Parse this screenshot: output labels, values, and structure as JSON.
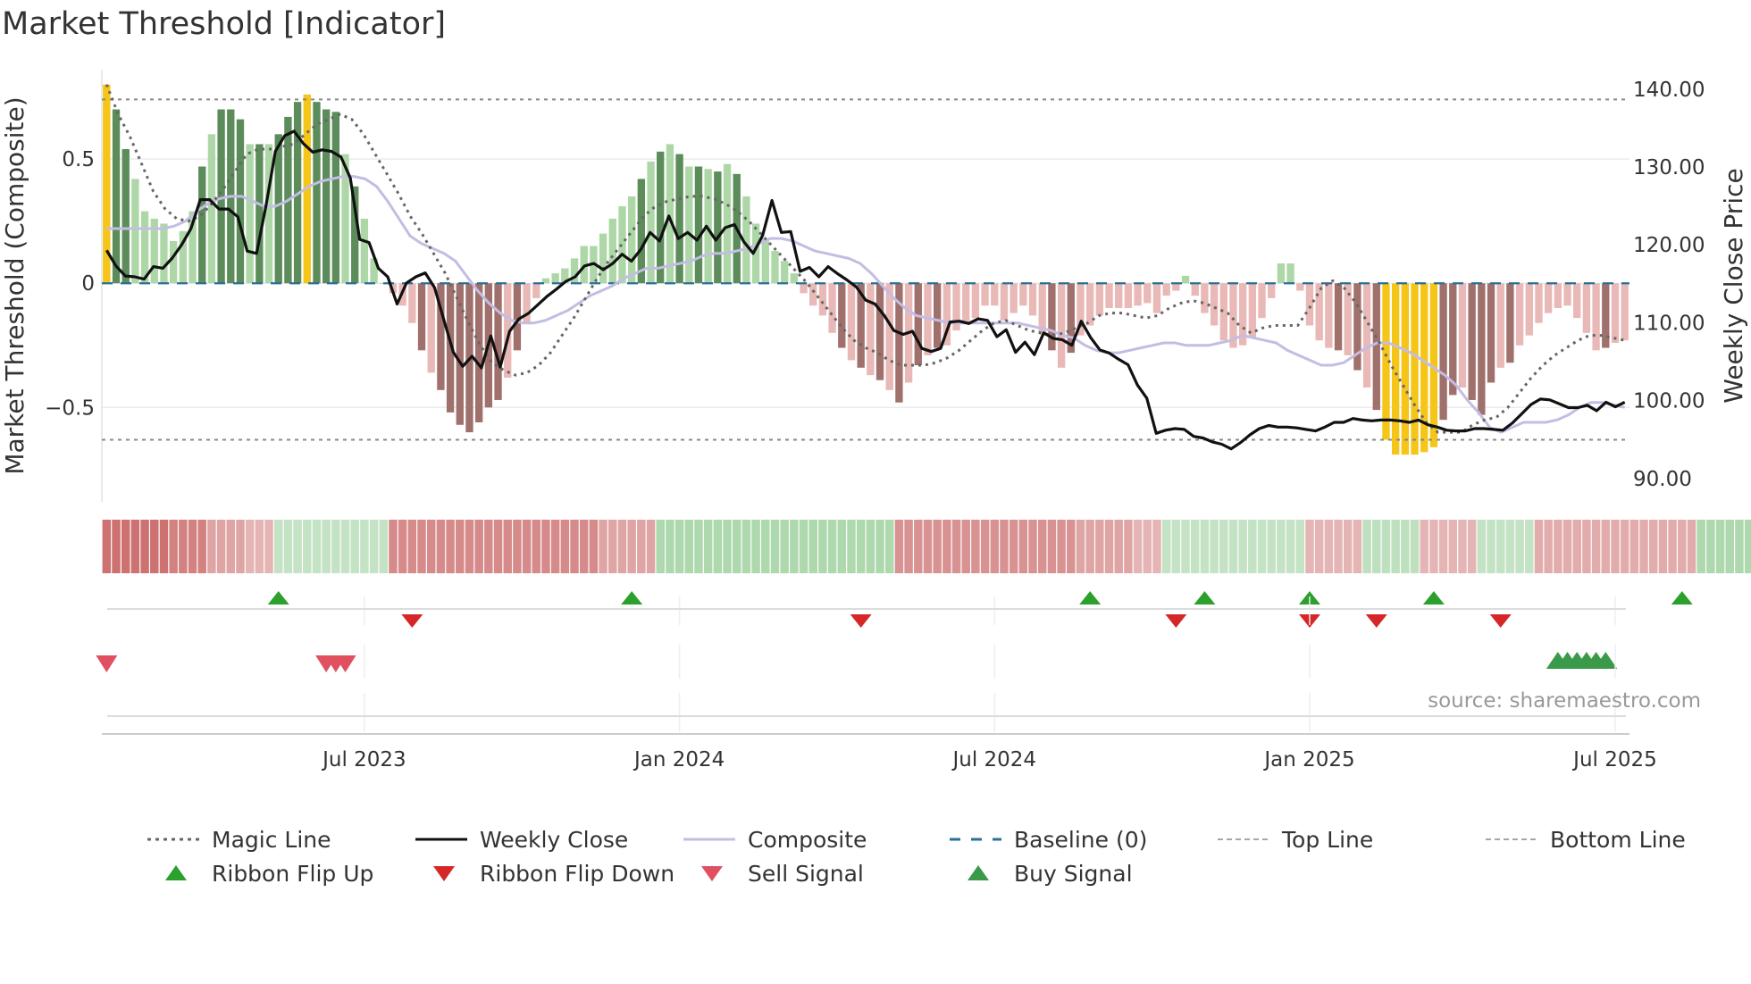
{
  "chart_data": {
    "type": "bar+line",
    "title": "Market Threshold [Indicator]",
    "ylabel_left": "Market Threshold (Composite)",
    "ylabel_right": "Weekly Close Price",
    "ylim_left": [
      -0.88,
      0.86
    ],
    "ylim_right": [
      87,
      142.5
    ],
    "yticks_left": [
      {
        "value": 0.5,
        "label": "0.5"
      },
      {
        "value": 0,
        "label": "0"
      },
      {
        "value": -0.5,
        "label": "−0.5"
      }
    ],
    "yticks_right": [
      {
        "value": 140,
        "label": "140.00"
      },
      {
        "value": 130,
        "label": "130.00"
      },
      {
        "value": 120,
        "label": "120.00"
      },
      {
        "value": 110,
        "label": "110.00"
      },
      {
        "value": 100,
        "label": "100.00"
      },
      {
        "value": 90,
        "label": "90.00"
      }
    ],
    "xticks": [
      {
        "week": 27,
        "label": "Jul 2023"
      },
      {
        "week": 60,
        "label": "Jan 2024"
      },
      {
        "week": 93,
        "label": "Jul 2024"
      },
      {
        "week": 126,
        "label": "Jan 2025"
      },
      {
        "week": 158,
        "label": "Jul 2025"
      }
    ],
    "top_line": 0.74,
    "bottom_line": -0.63,
    "composite_bars": [
      0.8,
      0.7,
      0.54,
      0.42,
      0.29,
      0.26,
      0.24,
      0.17,
      0.21,
      0.29,
      0.47,
      0.6,
      0.7,
      0.7,
      0.66,
      0.56,
      0.56,
      0.56,
      0.6,
      0.67,
      0.73,
      0.76,
      0.73,
      0.7,
      0.69,
      0.52,
      0.39,
      0.26,
      0.1,
      0.0,
      -0.04,
      -0.09,
      -0.16,
      -0.27,
      -0.36,
      -0.43,
      -0.52,
      -0.57,
      -0.6,
      -0.56,
      -0.5,
      -0.47,
      -0.38,
      -0.27,
      -0.16,
      -0.06,
      0.02,
      0.04,
      0.06,
      0.1,
      0.15,
      0.15,
      0.2,
      0.26,
      0.31,
      0.35,
      0.42,
      0.49,
      0.53,
      0.56,
      0.52,
      0.47,
      0.47,
      0.46,
      0.45,
      0.48,
      0.44,
      0.35,
      0.24,
      0.18,
      0.13,
      0.09,
      0.04,
      -0.04,
      -0.09,
      -0.13,
      -0.2,
      -0.26,
      -0.31,
      -0.34,
      -0.37,
      -0.39,
      -0.43,
      -0.48,
      -0.4,
      -0.33,
      -0.29,
      -0.26,
      -0.25,
      -0.19,
      -0.16,
      -0.14,
      -0.09,
      -0.09,
      -0.15,
      -0.12,
      -0.09,
      -0.13,
      -0.2,
      -0.27,
      -0.34,
      -0.28,
      -0.21,
      -0.17,
      -0.13,
      -0.1,
      -0.1,
      -0.1,
      -0.09,
      -0.08,
      -0.12,
      -0.05,
      -0.03,
      0.03,
      -0.05,
      -0.12,
      -0.17,
      -0.23,
      -0.26,
      -0.25,
      -0.22,
      -0.14,
      -0.06,
      0.08,
      0.08,
      -0.03,
      -0.17,
      -0.23,
      -0.26,
      -0.27,
      -0.29,
      -0.35,
      -0.42,
      -0.51,
      -0.63,
      -0.69,
      -0.69,
      -0.69,
      -0.68,
      -0.66,
      -0.55,
      -0.45,
      -0.42,
      -0.47,
      -0.53,
      -0.4,
      -0.34,
      -0.32,
      -0.25,
      -0.21,
      -0.16,
      -0.12,
      -0.1,
      -0.09,
      -0.14,
      -0.2,
      -0.27,
      -0.26,
      -0.24,
      -0.23
    ],
    "composite_line": [
      0.22,
      0.22,
      0.22,
      0.22,
      0.22,
      0.22,
      0.23,
      0.25,
      0.29,
      0.32,
      0.34,
      0.35,
      0.35,
      0.33,
      0.31,
      0.31,
      0.33,
      0.36,
      0.39,
      0.41,
      0.42,
      0.43,
      0.43,
      0.42,
      0.39,
      0.33,
      0.26,
      0.19,
      0.16,
      0.14,
      0.12,
      0.09,
      0.03,
      -0.03,
      -0.08,
      -0.12,
      -0.15,
      -0.16,
      -0.16,
      -0.15,
      -0.13,
      -0.11,
      -0.08,
      -0.05,
      -0.03,
      -0.01,
      0.02,
      0.04,
      0.06,
      0.06,
      0.07,
      0.08,
      0.09,
      0.11,
      0.12,
      0.12,
      0.13,
      0.14,
      0.16,
      0.18,
      0.18,
      0.17,
      0.15,
      0.13,
      0.12,
      0.11,
      0.1,
      0.08,
      0.04,
      -0.01,
      -0.06,
      -0.1,
      -0.13,
      -0.14,
      -0.15,
      -0.16,
      -0.16,
      -0.16,
      -0.16,
      -0.16,
      -0.16,
      -0.16,
      -0.17,
      -0.18,
      -0.19,
      -0.21,
      -0.22,
      -0.25,
      -0.27,
      -0.28,
      -0.28,
      -0.27,
      -0.26,
      -0.25,
      -0.24,
      -0.24,
      -0.25,
      -0.25,
      -0.25,
      -0.24,
      -0.23,
      -0.21,
      -0.22,
      -0.23,
      -0.24,
      -0.27,
      -0.29,
      -0.31,
      -0.33,
      -0.33,
      -0.32,
      -0.29,
      -0.26,
      -0.24,
      -0.24,
      -0.26,
      -0.28,
      -0.31,
      -0.34,
      -0.37,
      -0.41,
      -0.47,
      -0.52,
      -0.58,
      -0.6,
      -0.58,
      -0.56,
      -0.56,
      -0.56,
      -0.55,
      -0.53,
      -0.5,
      -0.48,
      -0.48,
      -0.49,
      -0.5
    ],
    "magic_line": [
      0.8,
      0.68,
      0.59,
      0.48,
      0.37,
      0.3,
      0.26,
      0.25,
      0.27,
      0.32,
      0.38,
      0.45,
      0.52,
      0.54,
      0.54,
      0.55,
      0.56,
      0.6,
      0.64,
      0.66,
      0.68,
      0.66,
      0.6,
      0.52,
      0.44,
      0.36,
      0.27,
      0.2,
      0.12,
      0.04,
      -0.06,
      -0.16,
      -0.25,
      -0.32,
      -0.35,
      -0.37,
      -0.36,
      -0.33,
      -0.28,
      -0.21,
      -0.14,
      -0.06,
      0.02,
      0.09,
      0.15,
      0.21,
      0.27,
      0.31,
      0.33,
      0.34,
      0.35,
      0.35,
      0.34,
      0.32,
      0.29,
      0.25,
      0.2,
      0.15,
      0.1,
      0.05,
      0.0,
      -0.06,
      -0.12,
      -0.18,
      -0.23,
      -0.26,
      -0.28,
      -0.31,
      -0.33,
      -0.33,
      -0.33,
      -0.32,
      -0.3,
      -0.27,
      -0.23,
      -0.19,
      -0.16,
      -0.15,
      -0.17,
      -0.19,
      -0.2,
      -0.21,
      -0.2,
      -0.18,
      -0.16,
      -0.13,
      -0.12,
      -0.12,
      -0.13,
      -0.14,
      -0.13,
      -0.1,
      -0.08,
      -0.07,
      -0.08,
      -0.1,
      -0.12,
      -0.17,
      -0.2,
      -0.18,
      -0.17,
      -0.17,
      -0.17,
      -0.1,
      -0.02,
      0.01,
      -0.02,
      -0.08,
      -0.16,
      -0.24,
      -0.33,
      -0.41,
      -0.49,
      -0.56,
      -0.6,
      -0.6,
      -0.6,
      -0.57,
      -0.55,
      -0.54,
      -0.5,
      -0.44,
      -0.38,
      -0.33,
      -0.29,
      -0.26,
      -0.23,
      -0.21,
      -0.21,
      -0.22,
      -0.23
    ],
    "weekly_close": [
      119.3,
      117.3,
      116,
      115.9,
      115.6,
      117.2,
      117,
      118.3,
      120,
      122.1,
      125.8,
      125.8,
      124.6,
      124.6,
      123.6,
      119.2,
      118.9,
      125,
      132,
      134,
      134.6,
      133,
      131.9,
      132.2,
      132,
      131.3,
      128.6,
      120.7,
      120.3,
      117,
      115.9,
      112.4,
      115.1,
      115.9,
      116.4,
      114.5,
      110.3,
      106.2,
      104.4,
      105.7,
      104.2,
      108.3,
      104.3,
      108.9,
      110.5,
      111.2,
      112.3,
      113.4,
      114.3,
      115.3,
      115.9,
      117.3,
      117.6,
      116.8,
      117.6,
      118.8,
      117.9,
      119.4,
      121.6,
      120.5,
      123.7,
      120.8,
      121.6,
      120.6,
      122.4,
      120.6,
      122.2,
      122.6,
      120.4,
      118.9,
      121.2,
      125.7,
      121.6,
      121.7,
      116.6,
      117.1,
      115.9,
      117.2,
      116.3,
      115.5,
      114.6,
      112.9,
      112.4,
      110.9,
      109,
      108.5,
      108.9,
      106.7,
      106.3,
      106.7,
      110.1,
      110.2,
      109.9,
      110.5,
      110.3,
      108.2,
      109.1,
      106.2,
      107.5,
      105.9,
      108.7,
      108,
      107.8,
      107.1,
      110.2,
      108.1,
      106.5,
      106.1,
      105.3,
      104.6,
      102,
      100.3,
      95.8,
      96.2,
      96.4,
      96.3,
      95.4,
      95.2,
      94.7,
      94.4,
      93.8,
      94.6,
      95.6,
      96.4,
      96.8,
      96.6,
      96.6,
      96.5,
      96.3,
      96.1,
      96.6,
      97.2,
      97.2,
      97.7,
      97.5,
      97.4,
      97.5,
      97.5,
      97.4,
      97.2,
      97.5,
      96.9,
      96.6,
      96.2,
      96.1,
      96.1,
      96.4,
      96.4,
      96.3,
      96.2,
      97.1,
      98.3,
      99.5,
      100.2,
      100.1,
      99.6,
      99.1,
      99.1,
      99.4,
      98.7,
      99.8,
      99.2,
      99.8
    ],
    "ribbon": [
      -0.6,
      -0.6,
      -0.6,
      -0.6,
      -0.6,
      -0.6,
      -0.6,
      -0.5,
      -0.5,
      -0.5,
      -0.5,
      -0.3,
      -0.3,
      -0.3,
      -0.3,
      -0.2,
      -0.2,
      -0.2,
      0.3,
      0.3,
      0.3,
      0.3,
      0.3,
      0.3,
      0.3,
      0.3,
      0.3,
      0.3,
      0.3,
      0.3,
      -0.45,
      -0.45,
      -0.45,
      -0.45,
      -0.45,
      -0.45,
      -0.45,
      -0.45,
      -0.45,
      -0.45,
      -0.45,
      -0.45,
      -0.45,
      -0.45,
      -0.45,
      -0.45,
      -0.45,
      -0.45,
      -0.45,
      -0.45,
      -0.45,
      -0.45,
      -0.3,
      -0.3,
      -0.3,
      -0.3,
      -0.3,
      -0.3,
      0.5,
      0.5,
      0.5,
      0.5,
      0.5,
      0.5,
      0.5,
      0.5,
      0.5,
      0.5,
      0.5,
      0.5,
      0.5,
      0.5,
      0.5,
      0.5,
      0.5,
      0.5,
      0.5,
      0.5,
      0.5,
      0.5,
      0.5,
      0.5,
      0.5,
      -0.4,
      -0.4,
      -0.4,
      -0.4,
      -0.4,
      -0.4,
      -0.4,
      -0.4,
      -0.4,
      -0.4,
      -0.4,
      -0.4,
      -0.4,
      -0.4,
      -0.4,
      -0.4,
      -0.4,
      -0.4,
      -0.4,
      -0.3,
      -0.3,
      -0.3,
      -0.3,
      -0.3,
      -0.3,
      -0.2,
      -0.2,
      -0.2,
      0.3,
      0.3,
      0.3,
      0.3,
      0.3,
      0.3,
      0.3,
      0.3,
      0.3,
      0.3,
      0.3,
      0.3,
      0.3,
      0.3,
      0.3,
      -0.2,
      -0.2,
      -0.2,
      -0.2,
      -0.2,
      -0.2,
      0.35,
      0.35,
      0.35,
      0.35,
      0.35,
      0.35,
      -0.2,
      -0.2,
      -0.2,
      -0.2,
      -0.2,
      -0.2,
      0.3,
      0.3,
      0.3,
      0.3,
      0.3,
      0.3,
      -0.25,
      -0.25,
      -0.25,
      -0.25,
      -0.25,
      -0.25,
      -0.25,
      -0.25,
      -0.25,
      -0.25,
      -0.25,
      -0.25,
      -0.25,
      -0.25,
      -0.25,
      -0.25,
      -0.25,
      0.5,
      0.5,
      0.5,
      0.5,
      0.5,
      0.5,
      0.5,
      0.5,
      0.5,
      0.5,
      0.5,
      0.5,
      0.5,
      0.5,
      0.5
    ],
    "ribbon_flip_up_weeks": [
      18,
      55,
      103,
      115,
      126,
      139,
      165
    ],
    "ribbon_flip_down_weeks": [
      32,
      79,
      112,
      126,
      133,
      146
    ],
    "sell_signal_weeks": [
      0,
      23,
      24,
      25
    ],
    "buy_signal_weeks": [
      152,
      153,
      154,
      155,
      156,
      157
    ],
    "legend": [
      {
        "label": "Magic Line",
        "style": "dotted",
        "color": "#666666"
      },
      {
        "label": "Weekly Close",
        "style": "solid",
        "color": "#111111"
      },
      {
        "label": "Composite",
        "style": "solid",
        "color": "#c3bde3"
      },
      {
        "label": "Baseline (0)",
        "style": "dashed",
        "color": "#2a6f97"
      },
      {
        "label": "Top Line",
        "style": "dashed",
        "color": "#888888"
      },
      {
        "label": "Bottom Line",
        "style": "dashed",
        "color": "#888888"
      },
      {
        "label": "Ribbon Flip Up",
        "marker": "triangle-up",
        "color": "#2ca02c"
      },
      {
        "label": "Ribbon Flip Down",
        "marker": "triangle-down",
        "color": "#d62728"
      },
      {
        "label": "Sell Signal",
        "marker": "triangle-down",
        "color": "#e05060"
      },
      {
        "label": "Buy Signal",
        "marker": "triangle-up",
        "color": "#3a9a4a"
      }
    ]
  },
  "source": "source: sharemaestro.com",
  "colors": {
    "pos_strong": "#5b8c5a",
    "pos_weak": "#aed7a8",
    "neg_strong": "#a0706c",
    "neg_weak": "#e8b9b6",
    "extreme": "#f5c518",
    "magic": "#666666",
    "close": "#111111",
    "composite": "#c3bde3",
    "baseline": "#2a6f97",
    "flip_up": "#2ca02c",
    "flip_down": "#d62728",
    "sell": "#e05060",
    "buy": "#3a9a4a"
  }
}
